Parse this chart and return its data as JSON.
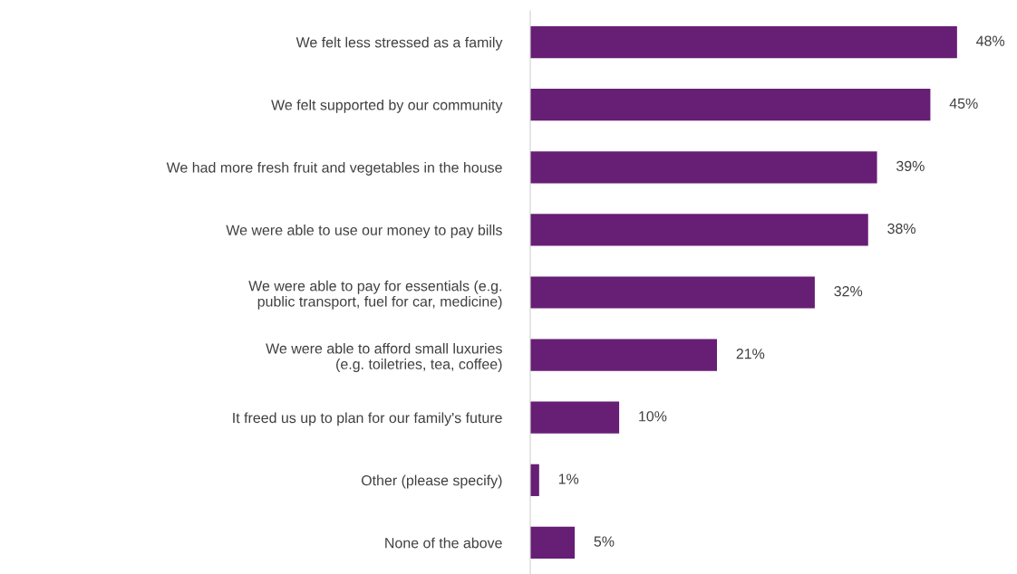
{
  "chart_data": {
    "type": "bar",
    "orientation": "horizontal",
    "categories": [
      "We felt less stressed as a family",
      "We felt supported by our community",
      "We had more fresh fruit and vegetables in the house",
      "We were able to use our money to pay bills",
      "We were able to pay for essentials (e.g.\npublic transport, fuel for car, medicine)",
      "We were able to afford small luxuries\n(e.g. toiletries, tea, coffee)",
      "It freed us up to plan for our family's future",
      "Other (please specify)",
      "None of the above"
    ],
    "values": [
      48,
      45,
      39,
      38,
      32,
      21,
      10,
      1,
      5
    ],
    "value_labels": [
      "48%",
      "45%",
      "39%",
      "38%",
      "32%",
      "21%",
      "10%",
      "1%",
      "5%"
    ],
    "color": "#671e75",
    "grid": false,
    "legend": false
  }
}
